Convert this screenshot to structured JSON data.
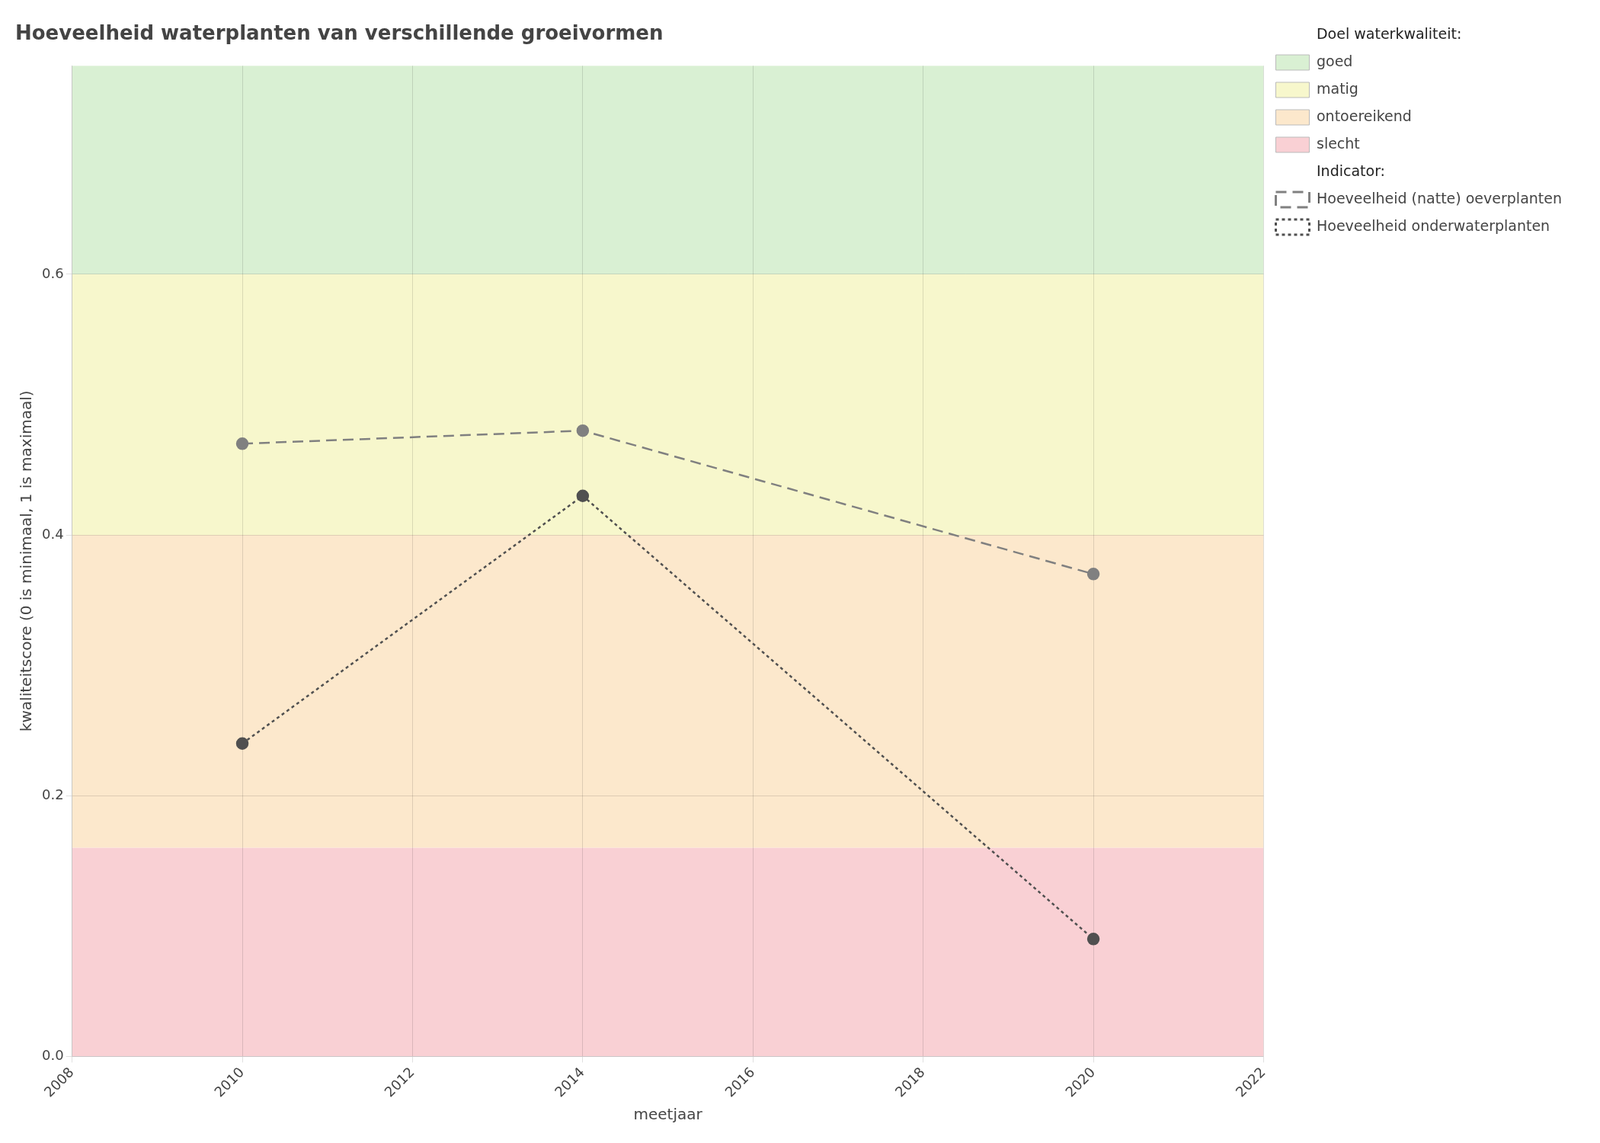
{
  "chart_data": {
    "type": "line",
    "title": "Hoeveelheid waterplanten van verschillende groeivormen",
    "x_label": "meetjaar",
    "y_label": "kwaliteitscore (0 is minimaal, 1 is maximaal)",
    "xlim": [
      2008,
      2022
    ],
    "xticks": [
      2008,
      2010,
      2012,
      2014,
      2016,
      2018,
      2020,
      2022
    ],
    "ylim": [
      0.0,
      0.76
    ],
    "yticks": [
      {
        "value": 0.0,
        "label": "0.0"
      },
      0.2,
      0.4,
      0.6
    ],
    "grid": true,
    "legend": "right",
    "zones_title": "Doel waterkwaliteit:",
    "zones": [
      {
        "name": "goed",
        "ymin": 0.6,
        "ymax": 0.76,
        "color": "#d9f0d3"
      },
      {
        "name": "matig",
        "ymin": 0.4,
        "ymax": 0.6,
        "color": "#f7f7cc"
      },
      {
        "name": "ontoereikend",
        "ymin": 0.16,
        "ymax": 0.4,
        "color": "#fce8cc"
      },
      {
        "name": "slecht",
        "ymin": 0.0,
        "ymax": 0.16,
        "color": "#f9d0d4"
      }
    ],
    "series_title": "Indicator:",
    "series": [
      {
        "name": "Hoeveelheid (natte) oeverplanten",
        "color": "#808080",
        "line_style": "dashed",
        "marker": "circle",
        "x": [
          2010,
          2014,
          2020
        ],
        "values": [
          0.47,
          0.48,
          0.37
        ]
      },
      {
        "name": "Hoeveelheid onderwaterplanten",
        "color": "#505050",
        "line_style": "dotted",
        "marker": "circle",
        "x": [
          2010,
          2014,
          2020
        ],
        "values": [
          0.24,
          0.43,
          0.09
        ]
      }
    ]
  }
}
